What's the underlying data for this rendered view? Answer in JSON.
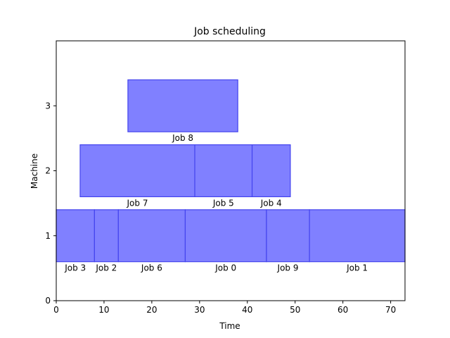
{
  "chart_data": {
    "type": "bar",
    "orientation": "horizontal",
    "title": "Job scheduling",
    "xlabel": "Time",
    "ylabel": "Machine",
    "xlim": [
      0,
      73
    ],
    "ylim": [
      0,
      4
    ],
    "xticks": [
      0,
      10,
      20,
      30,
      40,
      50,
      60,
      70
    ],
    "yticks": [
      0,
      1,
      2,
      3
    ],
    "grid": false,
    "bar_color": "#8080ff",
    "edge_color": "#4444ee",
    "bars": [
      {
        "label": "Job 3",
        "machine": 1,
        "start": 0,
        "end": 8
      },
      {
        "label": "Job 2",
        "machine": 1,
        "start": 8,
        "end": 13
      },
      {
        "label": "Job 6",
        "machine": 1,
        "start": 13,
        "end": 27
      },
      {
        "label": "Job 0",
        "machine": 1,
        "start": 27,
        "end": 44
      },
      {
        "label": "Job 9",
        "machine": 1,
        "start": 44,
        "end": 53
      },
      {
        "label": "Job 1",
        "machine": 1,
        "start": 53,
        "end": 73
      },
      {
        "label": "Job 7",
        "machine": 2,
        "start": 5,
        "end": 29
      },
      {
        "label": "Job 5",
        "machine": 2,
        "start": 29,
        "end": 41
      },
      {
        "label": "Job 4",
        "machine": 2,
        "start": 41,
        "end": 49
      },
      {
        "label": "Job 8",
        "machine": 3,
        "start": 15,
        "end": 38
      }
    ]
  }
}
